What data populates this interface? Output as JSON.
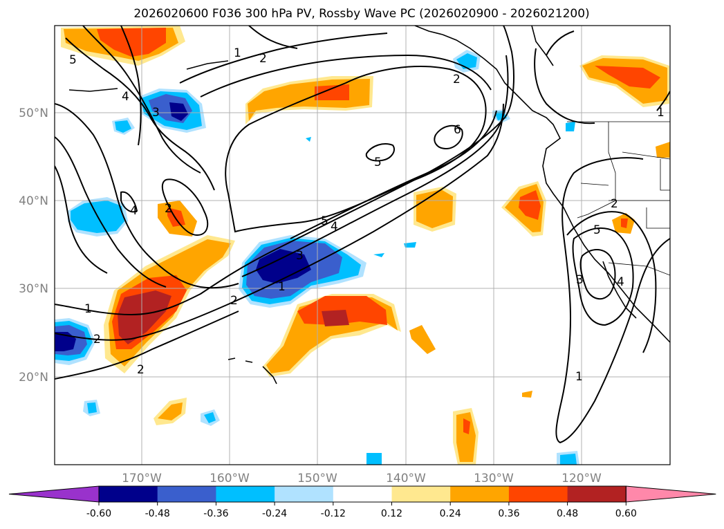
{
  "figure": {
    "title": "2026020600 F036 300 hPa PV, Rossby Wave PC (2026020900 - 2026021200)",
    "lat_labels": [
      "50°N",
      "40°N",
      "30°N",
      "20°N"
    ],
    "lon_labels": [
      "170°W",
      "160°W",
      "150°W",
      "140°W",
      "130°W",
      "120°W"
    ]
  },
  "chart_data": {
    "type": "heatmap",
    "title": "2026020600 F036 300 hPa PV, Rossby Wave PC (2026020900 - 2026021200)",
    "projection": "PlateCarree",
    "extent_lon": [
      -180,
      -110
    ],
    "extent_lat": [
      10,
      60
    ],
    "gridlines": true,
    "filled_field": "Rossby Wave PC",
    "contour_field": "300 hPa PV",
    "contour_levels": [
      1,
      2,
      3,
      4,
      5,
      6
    ],
    "contour_labels": [
      "5",
      "4",
      "3",
      "2",
      "1",
      "2",
      "4",
      "2",
      "1",
      "2",
      "5",
      "6",
      "5",
      "4",
      "3",
      "2",
      "1",
      "1",
      "2",
      "3",
      "4",
      "5",
      "1",
      "2"
    ],
    "colorbar": {
      "orientation": "horizontal",
      "extend": "both",
      "ticks": [
        "-0.60",
        "-0.48",
        "-0.36",
        "-0.24",
        "-0.12",
        "0.12",
        "0.24",
        "0.36",
        "0.48",
        "0.60"
      ],
      "colors": [
        "#9932cc",
        "#00008b",
        "#3a5fcd",
        "#00bfff",
        "#b0e2ff",
        "#ffffff",
        "#ffe88f",
        "#ffa500",
        "#ff4500",
        "#b22222",
        "#ff88aa"
      ]
    }
  }
}
